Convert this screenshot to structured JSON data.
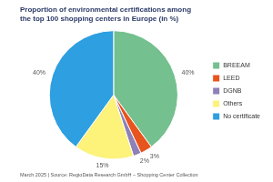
{
  "chart_data": {
    "type": "pie",
    "title": [
      "Proportion of environmental certifications among",
      "the top 100 shopping centers in Europe (in %)"
    ],
    "caption": "March 2025 | Source: RegioData Research GmbH – Shopping Center Collection",
    "categories": [
      "BREEAM",
      "LEED",
      "DGNB",
      "Others",
      "No certificate"
    ],
    "values": [
      40,
      3,
      2,
      15,
      40
    ],
    "value_labels": [
      "40%",
      "3%",
      "2%",
      "15%",
      "40%"
    ],
    "colors": [
      "#74c08e",
      "#e8541e",
      "#8f80b8",
      "#fdf27a",
      "#2e9fe0"
    ],
    "legend": "right",
    "data_labels": true
  }
}
